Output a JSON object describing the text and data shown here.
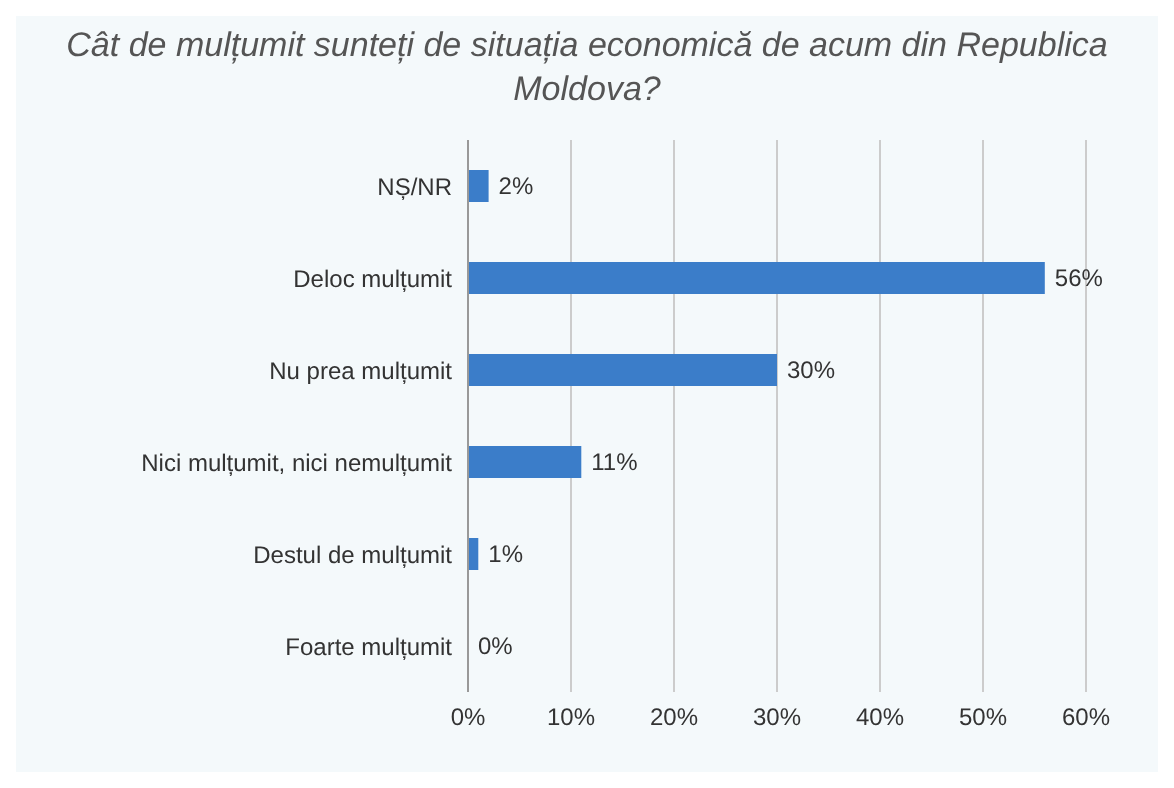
{
  "chart_data": {
    "type": "bar",
    "orientation": "horizontal",
    "title": "Cât de mulțumit sunteți de situația economică de acum din Republica Moldova?",
    "categories": [
      "NȘ/NR",
      "Deloc mulțumit",
      "Nu prea mulțumit",
      "Nici mulțumit, nici nemulțumit",
      "Destul de mulțumit",
      "Foarte mulțumit"
    ],
    "values": [
      2,
      56,
      30,
      11,
      1,
      0
    ],
    "value_labels": [
      "2%",
      "56%",
      "30%",
      "11%",
      "1%",
      "0%"
    ],
    "color": "#3b7dc9",
    "xlim": [
      0,
      60
    ],
    "xticks": [
      {
        "value": 0,
        "label": "0%"
      },
      {
        "value": 10,
        "label": "10%"
      },
      {
        "value": 20,
        "label": "20%"
      },
      {
        "value": 30,
        "label": "30%"
      },
      {
        "value": 40,
        "label": "40%"
      },
      {
        "value": 50,
        "label": "50%"
      },
      {
        "value": 60,
        "label": "60%"
      }
    ],
    "grid": "x"
  }
}
